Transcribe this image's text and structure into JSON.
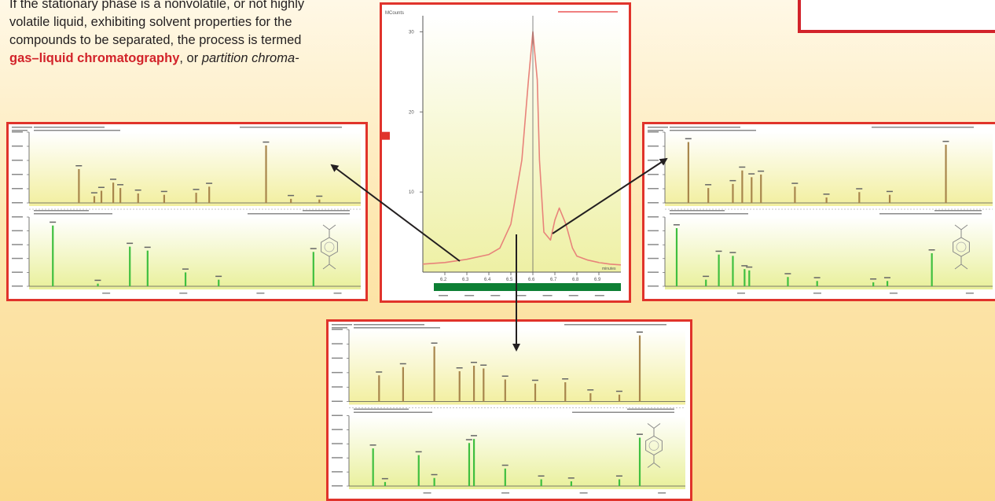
{
  "text_lines": [
    {
      "parts": [
        {
          "text": "If the stationary phase is a nonvolatile, or not highly",
          "style": "normal"
        }
      ]
    },
    {
      "parts": [
        {
          "text": "volatile liquid, exhibiting solvent properties for the",
          "style": "normal"
        }
      ]
    },
    {
      "parts": [
        {
          "text": "compounds to be separated, the process is termed",
          "style": "normal"
        }
      ]
    },
    {
      "parts": [
        {
          "text": "gas–liquid chromatography",
          "style": "term"
        },
        {
          "text": ", or ",
          "style": "normal"
        },
        {
          "text": "partition chroma-",
          "style": "ital"
        }
      ]
    }
  ],
  "colors": {
    "accent": "#e0332b",
    "peak_top": "#a8864c",
    "peak_bottom": "#3fbf3f",
    "chrom_trace": "#e8837a",
    "bar_green": "#0d7f34",
    "bg_top": "#fff8e6",
    "bg_bottom": "#fbd98d"
  },
  "chart_data": [
    {
      "id": "chromatogram",
      "type": "line",
      "title": "",
      "ylabel": "MCounts",
      "xlabel": "minutes",
      "x": [
        6.1,
        6.2,
        6.3,
        6.4,
        6.45,
        6.5,
        6.55,
        6.58,
        6.6,
        6.62,
        6.63,
        6.65,
        6.68,
        6.7,
        6.72,
        6.75,
        6.78,
        6.8,
        6.85,
        6.9,
        6.95,
        7.0
      ],
      "y": [
        1,
        1.2,
        1.6,
        2.2,
        3,
        6,
        14,
        24,
        30,
        24,
        14,
        5,
        4,
        6.5,
        8,
        6,
        3,
        2,
        1.5,
        1.2,
        1,
        0.9
      ],
      "xticks": [
        "6.2",
        "6.3",
        "6.4",
        "6.5",
        "6.6",
        "6.7",
        "6.8",
        "6.9"
      ],
      "yticks": [
        "10",
        "20",
        "30"
      ],
      "xlim": [
        6.1,
        7.0
      ],
      "ylim": [
        0,
        32
      ]
    },
    {
      "id": "ms-left",
      "type": "bar",
      "top_x": [
        62,
        75,
        81,
        91,
        97,
        112,
        134,
        161,
        172,
        220,
        241,
        265
      ],
      "top_y": [
        50,
        10,
        18,
        30,
        22,
        14,
        12,
        15,
        24,
        85,
        6,
        5
      ],
      "bottom_x": [
        40,
        78,
        105,
        120,
        152,
        180,
        260
      ],
      "bottom_y": [
        92,
        4,
        60,
        54,
        21,
        10,
        52
      ]
    },
    {
      "id": "ms-right",
      "type": "bar",
      "top_x": [
        40,
        57,
        78,
        86,
        94,
        102,
        131,
        158,
        186,
        212,
        260
      ],
      "top_y": [
        90,
        22,
        28,
        48,
        38,
        42,
        24,
        8,
        16,
        12,
        86
      ],
      "bottom_x": [
        30,
        55,
        66,
        78,
        88,
        92,
        125,
        150,
        198,
        210,
        248
      ],
      "bottom_y": [
        88,
        10,
        48,
        46,
        26,
        24,
        14,
        8,
        6,
        8,
        50
      ]
    },
    {
      "id": "ms-bottom",
      "type": "bar",
      "top_x": [
        45,
        65,
        91,
        112,
        124,
        132,
        150,
        175,
        200,
        221,
        245,
        262
      ],
      "top_y": [
        38,
        50,
        80,
        44,
        52,
        48,
        32,
        26,
        28,
        12,
        10,
        96
      ],
      "bottom_x": [
        40,
        50,
        78,
        91,
        120,
        124,
        150,
        180,
        205,
        245,
        262
      ],
      "bottom_y": [
        56,
        6,
        46,
        12,
        64,
        70,
        26,
        10,
        7,
        10,
        72
      ]
    }
  ]
}
